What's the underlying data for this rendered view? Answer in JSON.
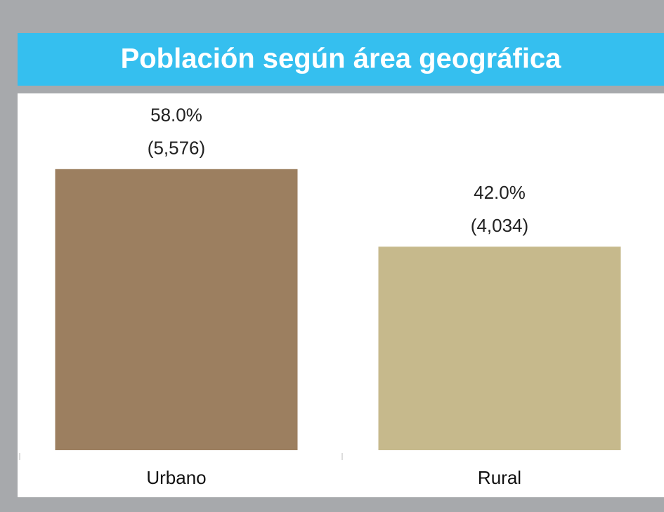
{
  "chart_data": {
    "type": "bar",
    "title": "Población según área geográfica",
    "categories": [
      "Urbano",
      "Rural"
    ],
    "values": [
      58.0,
      42.0
    ],
    "value_labels": [
      "58.0%",
      "42.0%"
    ],
    "counts": [
      5576,
      4034
    ],
    "count_labels": [
      "(5,576)",
      "(4,034)"
    ],
    "colors": [
      "#9c7f60",
      "#c6b98c"
    ]
  }
}
